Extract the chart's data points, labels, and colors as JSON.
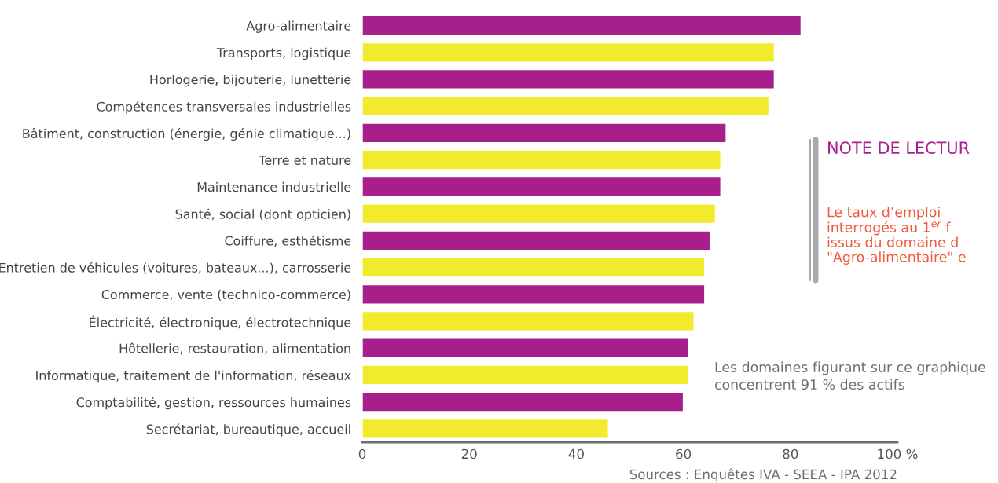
{
  "chart_data": {
    "type": "bar",
    "orientation": "horizontal",
    "categories": [
      "Agro-alimentaire",
      "Transports, logistique",
      "Horlogerie, bijouterie, lunetterie",
      "Compétences transversales industrielles",
      "Bâtiment, construction (énergie, génie climatique...)",
      "Terre et nature",
      "Maintenance industrielle",
      "Santé, social (dont opticien)",
      "Coiffure, esthétisme",
      "Entretien de véhicules (voitures, bateaux...), carrosserie",
      "Commerce, vente (technico-commerce)",
      "Électricité, électronique, électrotechnique",
      "Hôtellerie, restauration, alimentation",
      "Informatique, traitement de l'information, réseaux",
      "Comptabilité, gestion, ressources humaines",
      "Secrétariat, bureautique, accueil"
    ],
    "values": [
      82,
      77,
      77,
      76,
      68,
      67,
      67,
      66,
      65,
      64,
      64,
      62,
      61,
      61,
      60,
      46
    ],
    "colors": [
      "#a71f8b",
      "#f2ea2c",
      "#a71f8b",
      "#f2ea2c",
      "#a71f8b",
      "#f2ea2c",
      "#a71f8b",
      "#f2ea2c",
      "#a71f8b",
      "#f2ea2c",
      "#a71f8b",
      "#f2ea2c",
      "#a71f8b",
      "#f2ea2c",
      "#a71f8b",
      "#f2ea2c"
    ],
    "xlim": [
      0,
      100
    ],
    "xticks": [
      0,
      20,
      40,
      60,
      80,
      {
        "value": 100,
        "label": "100 %"
      }
    ],
    "grid": false,
    "legend": false,
    "annotations": [
      "NOTE DE LECTUR",
      "Le taux d’emploi\ninterrogés au 1$^{er}$ f\nissus du domaine d\n\"Agro-alimentaire\" e",
      "Les domaines figurant sur ce graphique\nconcentrent 91 % des actifs",
      "Sources : Enquêtes IVA - SEEA - IPA 2012"
    ]
  }
}
